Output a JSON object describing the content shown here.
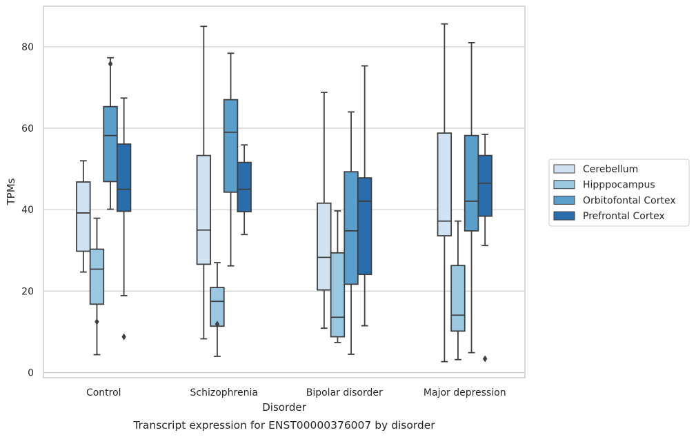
{
  "caption": "Transcript expression for ENST00000376007 by disorder",
  "chart_data": {
    "type": "boxplot",
    "xlabel": "Disorder",
    "ylabel": "TPMs",
    "ylim": [
      -1.2,
      89.5
    ],
    "yticks": [
      0,
      20,
      40,
      60,
      80
    ],
    "grid": true,
    "legend_position": "right",
    "categories": [
      "Control",
      "Schizophrenia",
      "Bipolar disorder",
      "Major depression"
    ],
    "series": [
      {
        "name": "Cerebellum",
        "color": "#d1e2f2",
        "boxes": [
          {
            "whislo": 24.7,
            "q1": 29.8,
            "med": 39.2,
            "q3": 46.8,
            "whishi": 52.0,
            "fliers": []
          },
          {
            "whislo": 8.3,
            "q1": 26.6,
            "med": 35.0,
            "q3": 53.3,
            "whishi": 85.0,
            "fliers": []
          },
          {
            "whislo": 10.9,
            "q1": 20.3,
            "med": 28.3,
            "q3": 41.6,
            "whishi": 68.8,
            "fliers": []
          },
          {
            "whislo": 2.7,
            "q1": 33.6,
            "med": 37.2,
            "q3": 58.8,
            "whishi": 85.6,
            "fliers": []
          }
        ]
      },
      {
        "name": "Hipppocampus",
        "color": "#9ac8e0",
        "boxes": [
          {
            "whislo": 4.4,
            "q1": 16.8,
            "med": 25.4,
            "q3": 30.3,
            "whishi": 37.9,
            "fliers": [
              12.5
            ]
          },
          {
            "whislo": 4.0,
            "q1": 11.4,
            "med": 17.5,
            "q3": 20.9,
            "whishi": 27.0,
            "fliers": [
              11.9
            ]
          },
          {
            "whislo": 7.4,
            "q1": 8.8,
            "med": 13.6,
            "q3": 29.4,
            "whishi": 39.7,
            "fliers": []
          },
          {
            "whislo": 3.2,
            "q1": 10.2,
            "med": 14.1,
            "q3": 26.3,
            "whishi": 37.2,
            "fliers": []
          }
        ]
      },
      {
        "name": "Orbitofontal Cortex",
        "color": "#5a9fcb",
        "boxes": [
          {
            "whislo": 40.1,
            "q1": 46.9,
            "med": 58.2,
            "q3": 65.3,
            "whishi": 77.3,
            "fliers": [
              75.8
            ]
          },
          {
            "whislo": 26.2,
            "q1": 44.3,
            "med": 59.0,
            "q3": 67.0,
            "whishi": 78.4,
            "fliers": []
          },
          {
            "whislo": 4.5,
            "q1": 21.7,
            "med": 34.8,
            "q3": 49.3,
            "whishi": 64.0,
            "fliers": []
          },
          {
            "whislo": 4.9,
            "q1": 34.8,
            "med": 42.1,
            "q3": 58.2,
            "whishi": 81.0,
            "fliers": []
          }
        ]
      },
      {
        "name": "Prefrontal Cortex",
        "color": "#2a6dad",
        "boxes": [
          {
            "whislo": 18.9,
            "q1": 39.6,
            "med": 45.0,
            "q3": 56.1,
            "whishi": 67.4,
            "fliers": [
              8.8
            ]
          },
          {
            "whislo": 33.9,
            "q1": 39.5,
            "med": 45.0,
            "q3": 51.6,
            "whishi": 55.9,
            "fliers": []
          },
          {
            "whislo": 11.5,
            "q1": 24.1,
            "med": 42.1,
            "q3": 47.8,
            "whishi": 75.3,
            "fliers": []
          },
          {
            "whislo": 31.2,
            "q1": 38.4,
            "med": 46.5,
            "q3": 53.3,
            "whishi": 58.5,
            "fliers": [
              3.4
            ]
          }
        ]
      }
    ]
  }
}
